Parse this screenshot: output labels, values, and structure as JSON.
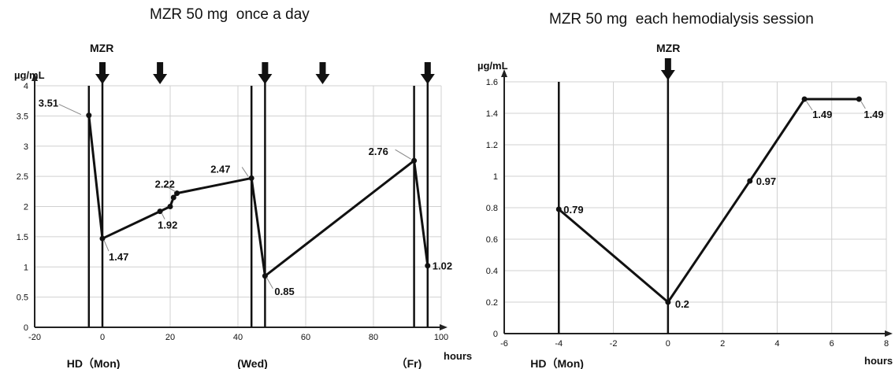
{
  "chart_data": [
    {
      "type": "line",
      "title": "MZR 50 mg  once a day",
      "ylabel": "µg/mL",
      "xlabel": "hours",
      "xlim": [
        -20,
        100
      ],
      "ylim": [
        0,
        4
      ],
      "xticks": [
        "-20",
        "0",
        "20",
        "40",
        "60",
        "80",
        "100"
      ],
      "yticks": [
        "0",
        "0.5",
        "1",
        "1.5",
        "2",
        "2.5",
        "3",
        "3.5",
        "4"
      ],
      "grid": true,
      "series": [
        {
          "x": [
            -4,
            0,
            17,
            20,
            21,
            22,
            44,
            48,
            92,
            96
          ],
          "y": [
            3.51,
            1.47,
            1.92,
            2.0,
            2.15,
            2.22,
            2.47,
            0.85,
            2.76,
            1.02
          ]
        }
      ],
      "data_labels": [
        {
          "text": "3.51",
          "x": -4,
          "y": 3.51
        },
        {
          "text": "1.47",
          "x": 0,
          "y": 1.47
        },
        {
          "text": "1.92",
          "x": 17,
          "y": 1.92
        },
        {
          "text": "2.22",
          "x": 22,
          "y": 2.22
        },
        {
          "text": "2.47",
          "x": 44,
          "y": 2.47
        },
        {
          "text": "0.85",
          "x": 48,
          "y": 0.85
        },
        {
          "text": "2.76",
          "x": 92,
          "y": 2.76
        },
        {
          "text": "1.02",
          "x": 96,
          "y": 1.02
        }
      ],
      "hd_lines_x": [
        -4,
        44,
        92
      ],
      "dose_lines_x": [
        0,
        48,
        96
      ],
      "dose_arrows_x": [
        0,
        17,
        48,
        65,
        96
      ],
      "dose_label": "MZR",
      "day_labels": [
        {
          "text": "HD（Mon)",
          "x": -4
        },
        {
          "text": "(Wed)",
          "x": 44
        },
        {
          "text": "（Fr)",
          "x": 92
        }
      ]
    },
    {
      "type": "line",
      "title": "MZR 50 mg  each hemodialysis session",
      "ylabel": "µg/mL",
      "xlabel": "hours",
      "xlim": [
        -6,
        8
      ],
      "ylim": [
        0,
        1.6
      ],
      "xticks": [
        "-6",
        "-4",
        "-2",
        "0",
        "2",
        "4",
        "6",
        "8"
      ],
      "yticks": [
        "0",
        "0.2",
        "0.4",
        "0.6",
        "0.8",
        "1",
        "1.2",
        "1.4",
        "1.6"
      ],
      "grid": true,
      "series": [
        {
          "x": [
            -4,
            0,
            3,
            5,
            7
          ],
          "y": [
            0.79,
            0.2,
            0.97,
            1.49,
            1.49
          ]
        }
      ],
      "data_labels": [
        {
          "text": "0.79",
          "x": -4,
          "y": 0.79
        },
        {
          "text": "0.2",
          "x": 0,
          "y": 0.2
        },
        {
          "text": "0.97",
          "x": 3,
          "y": 0.97
        },
        {
          "text": "1.49",
          "x": 5,
          "y": 1.49
        },
        {
          "text": "1.49",
          "x": 7,
          "y": 1.49
        }
      ],
      "hd_lines_x": [
        -4
      ],
      "dose_lines_x": [
        0
      ],
      "dose_arrows_x": [
        0
      ],
      "dose_label": "MZR",
      "day_labels": [
        {
          "text": "HD（Mon)",
          "x": -4
        }
      ]
    }
  ]
}
